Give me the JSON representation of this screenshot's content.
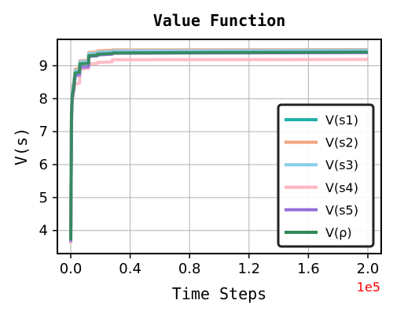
{
  "chart_data": {
    "type": "line",
    "title": "Value Function",
    "xlabel": "Time Steps",
    "ylabel": "V(s)",
    "x_multiplier_label": "1e5",
    "xlim": [
      -0.09,
      2.09
    ],
    "ylim": [
      3.3,
      9.8
    ],
    "xticks": [
      0.0,
      0.4,
      0.8,
      1.2,
      1.6,
      2.0
    ],
    "xtick_labels": [
      "0.0",
      "0.4",
      "0.8",
      "1.2",
      "1.6",
      "2.0"
    ],
    "yticks": [
      4,
      5,
      6,
      7,
      8,
      9
    ],
    "ytick_labels": [
      "4",
      "5",
      "6",
      "7",
      "8",
      "9"
    ],
    "grid": true,
    "legend_position": "lower-right",
    "series": [
      {
        "name": "V(s1)",
        "color": "#20b2aa",
        "x": [
          0,
          0.005,
          0.01,
          0.02,
          0.03,
          0.06,
          0.061,
          0.12,
          0.121,
          0.18,
          0.181,
          0.28,
          0.281,
          2.0
        ],
        "y": [
          3.7,
          7.5,
          8.1,
          8.35,
          8.8,
          8.82,
          9.1,
          9.12,
          9.33,
          9.35,
          9.38,
          9.4,
          9.42,
          9.44
        ]
      },
      {
        "name": "V(s2)",
        "color": "#f4a582",
        "x": [
          0,
          0.005,
          0.01,
          0.02,
          0.03,
          0.06,
          0.061,
          0.12,
          0.121,
          0.18,
          0.181,
          0.28,
          0.281,
          2.0
        ],
        "y": [
          3.8,
          7.7,
          8.3,
          8.5,
          8.9,
          8.92,
          9.15,
          9.17,
          9.4,
          9.42,
          9.45,
          9.47,
          9.48,
          9.49
        ]
      },
      {
        "name": "V(s3)",
        "color": "#87ceeb",
        "x": [
          0,
          0.005,
          0.01,
          0.02,
          0.03,
          0.06,
          0.061,
          0.12,
          0.121,
          0.18,
          0.181,
          0.28,
          0.281,
          2.0
        ],
        "y": [
          3.75,
          7.6,
          8.2,
          8.45,
          8.85,
          8.87,
          9.12,
          9.14,
          9.36,
          9.38,
          9.41,
          9.43,
          9.45,
          9.47
        ]
      },
      {
        "name": "V(s4)",
        "color": "#ffb6c1",
        "x": [
          0,
          0.005,
          0.01,
          0.02,
          0.03,
          0.06,
          0.061,
          0.12,
          0.121,
          0.18,
          0.181,
          0.28,
          0.281,
          2.0
        ],
        "y": [
          3.6,
          7.2,
          7.9,
          8.2,
          8.45,
          8.47,
          8.9,
          8.92,
          9.05,
          9.07,
          9.1,
          9.12,
          9.18,
          9.19
        ]
      },
      {
        "name": "V(s5)",
        "color": "#9370db",
        "x": [
          0,
          0.005,
          0.01,
          0.02,
          0.03,
          0.06,
          0.061,
          0.12,
          0.121,
          0.18,
          0.181,
          0.28,
          0.281,
          2.0
        ],
        "y": [
          3.65,
          7.4,
          8.0,
          8.3,
          8.7,
          8.72,
          8.95,
          8.97,
          9.28,
          9.3,
          9.33,
          9.35,
          9.38,
          9.4
        ]
      },
      {
        "name": "V(ρ)",
        "color": "#2e8b57",
        "x": [
          0,
          0.005,
          0.01,
          0.02,
          0.03,
          0.06,
          0.061,
          0.12,
          0.121,
          0.18,
          0.181,
          0.28,
          0.281,
          2.0
        ],
        "y": [
          3.7,
          7.5,
          8.1,
          8.33,
          8.78,
          8.8,
          9.05,
          9.07,
          9.3,
          9.32,
          9.35,
          9.37,
          9.39,
          9.41
        ]
      }
    ]
  }
}
